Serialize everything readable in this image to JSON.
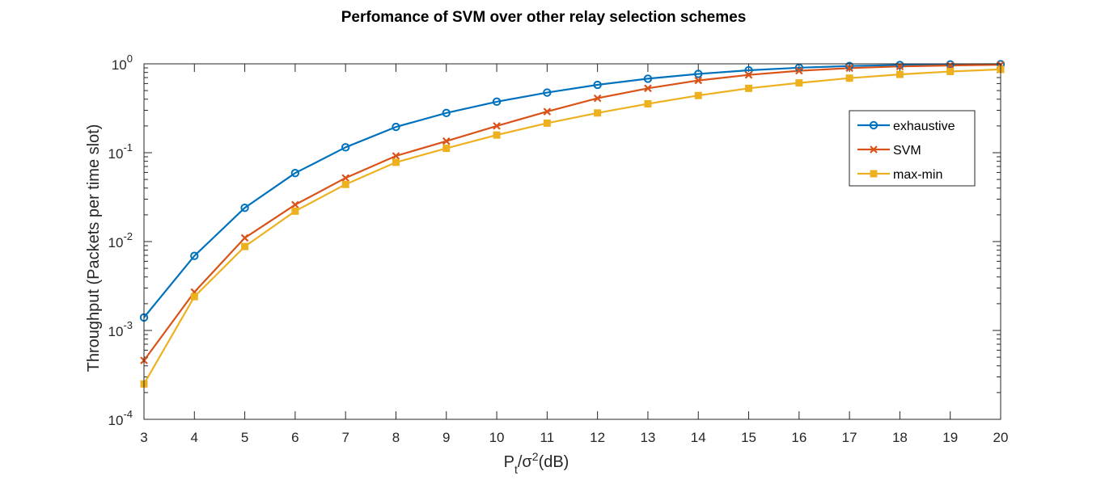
{
  "chart_data": {
    "type": "line",
    "title": "Perfomance of SVM over other relay selection schemes",
    "xlabel": {
      "base": "P",
      "sub": "t",
      "mid": "/σ",
      "sup": "2",
      "tail": "(dB)"
    },
    "ylabel": "Throughput (Packets per time slot)",
    "xlim": [
      3,
      20
    ],
    "ylim": [
      0.0001,
      1
    ],
    "yscale": "log",
    "x": [
      3,
      4,
      5,
      6,
      7,
      8,
      9,
      10,
      11,
      12,
      13,
      14,
      15,
      16,
      17,
      18,
      19,
      20
    ],
    "y_ticks": [
      {
        "value": 0.0001,
        "base": "10",
        "exp": "-4"
      },
      {
        "value": 0.001,
        "base": "10",
        "exp": "-3"
      },
      {
        "value": 0.01,
        "base": "10",
        "exp": "-2"
      },
      {
        "value": 0.1,
        "base": "10",
        "exp": "-1"
      },
      {
        "value": 1,
        "base": "10",
        "exp": "0"
      }
    ],
    "legend_position": "top-right",
    "series": [
      {
        "name": "exhaustive",
        "color": "#0072BD",
        "marker": "circle",
        "values": [
          0.0014,
          0.0069,
          0.024,
          0.059,
          0.115,
          0.195,
          0.28,
          0.375,
          0.475,
          0.58,
          0.68,
          0.77,
          0.845,
          0.905,
          0.945,
          0.97,
          0.985,
          0.99
        ]
      },
      {
        "name": "SVM",
        "color": "#D95319",
        "marker": "x",
        "values": [
          0.00046,
          0.0027,
          0.011,
          0.026,
          0.052,
          0.092,
          0.135,
          0.2,
          0.29,
          0.41,
          0.53,
          0.65,
          0.75,
          0.835,
          0.895,
          0.935,
          0.96,
          0.975
        ]
      },
      {
        "name": "max-min",
        "color": "#EDB120",
        "marker": "square",
        "values": [
          0.00025,
          0.0024,
          0.0088,
          0.022,
          0.044,
          0.078,
          0.112,
          0.158,
          0.215,
          0.28,
          0.355,
          0.44,
          0.53,
          0.61,
          0.69,
          0.76,
          0.82,
          0.865
        ]
      }
    ]
  }
}
